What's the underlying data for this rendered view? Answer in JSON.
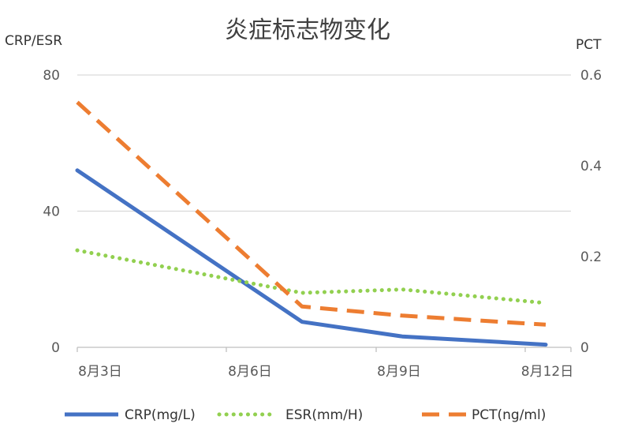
{
  "chart_data": {
    "type": "line",
    "title": "炎症标志物变化",
    "ylabel_left": "CRP/ESR",
    "ylabel_right": "PCT",
    "x_labels": [
      "8月3日",
      "8月6日",
      "8月9日",
      "8月12日"
    ],
    "y_left": {
      "range": [
        0,
        80
      ],
      "ticks": [
        "0",
        "40",
        "80"
      ]
    },
    "y_right": {
      "range": [
        0,
        0.6
      ],
      "ticks": [
        "0",
        "0.2",
        "0.4",
        "0.6"
      ]
    },
    "grid": true,
    "legend_position": "bottom",
    "series": [
      {
        "name": "CRP(mg/L)",
        "axis": "left",
        "color": "#4472C4",
        "style": "solid",
        "points": [
          {
            "x": "8月3日",
            "y": 52
          },
          {
            "x": "8月7日",
            "y": 7.5
          },
          {
            "x": "8月9日",
            "y": 3.2
          },
          {
            "x": "8月12日",
            "y": 0.8
          }
        ]
      },
      {
        "name": "ESR(mm/H)",
        "axis": "left",
        "color": "#92D050",
        "style": "dotted",
        "points": [
          {
            "x": "8月3日",
            "y": 28.5
          },
          {
            "x": "8月7日",
            "y": 16
          },
          {
            "x": "8月9日",
            "y": 17
          },
          {
            "x": "8月12日",
            "y": 13
          }
        ]
      },
      {
        "name": "PCT(ng/ml)",
        "axis": "right",
        "color": "#ED7D31",
        "style": "dashed",
        "points": [
          {
            "x": "8月3日",
            "y": 0.54
          },
          {
            "x": "8月7日",
            "y": 0.09
          },
          {
            "x": "8月9日",
            "y": 0.07
          },
          {
            "x": "8月12日",
            "y": 0.05
          }
        ]
      }
    ]
  }
}
